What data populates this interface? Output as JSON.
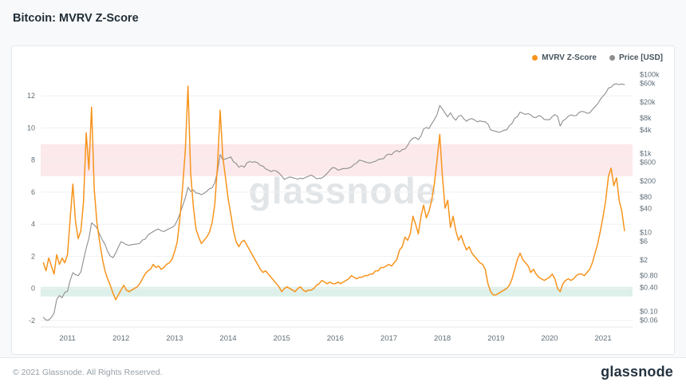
{
  "page": {
    "title": "Bitcoin: MVRV Z-Score",
    "watermark": "glassnode",
    "footer_copyright": "© 2021 Glassnode. All Rights Reserved.",
    "brand": "glassnode"
  },
  "legend": [
    {
      "label": "MVRV Z-Score",
      "color": "#f7941d"
    },
    {
      "label": "Price [USD]",
      "color": "#8e8e8e"
    }
  ],
  "chart_data": {
    "type": "line",
    "title": "Bitcoin: MVRV Z-Score",
    "x_ticks": [
      2011,
      2012,
      2013,
      2014,
      2015,
      2016,
      2017,
      2018,
      2019,
      2020,
      2021
    ],
    "x_range": [
      2010.5,
      2021.55
    ],
    "x_start": 2010.55,
    "x_step": 0.05,
    "left_axis": {
      "label": "MVRV Z-Score",
      "scale": "linear",
      "ticks": [
        -2,
        0,
        2,
        4,
        6,
        8,
        10,
        12
      ],
      "range": [
        -2.4,
        13.6
      ]
    },
    "right_axis": {
      "label": "Price [USD]",
      "scale": "log",
      "tick_labels": [
        "$100k",
        "$60k",
        "$20k",
        "$8k",
        "$4k",
        "$1k",
        "$600",
        "$200",
        "$80",
        "$40",
        "$10",
        "$6",
        "$2",
        "$0.80",
        "$0.40",
        "$0.10",
        "$0.06"
      ],
      "tick_values": [
        100000,
        60000,
        20000,
        8000,
        4000,
        1000,
        600,
        200,
        80,
        40,
        10,
        6,
        2,
        0.8,
        0.4,
        0.1,
        0.06
      ],
      "range": [
        0.04,
        130000
      ]
    },
    "bands": [
      {
        "name": "overvalued-zone",
        "axis": "left",
        "from": 7,
        "to": 9,
        "color": "rgba(231,76,90,0.12)"
      },
      {
        "name": "undervalued-zone",
        "axis": "left",
        "from": -0.5,
        "to": 0.1,
        "color": "rgba(46,164,120,0.16)"
      }
    ],
    "series": [
      {
        "name": "MVRV Z-Score",
        "axis": "left",
        "color": "#f7941d",
        "values": [
          1.6,
          1.1,
          1.9,
          1.4,
          0.9,
          2.1,
          1.5,
          1.9,
          1.6,
          2.1,
          4.3,
          6.5,
          4.2,
          3.1,
          3.6,
          5.4,
          9.7,
          7.4,
          11.3,
          6.2,
          4.1,
          2.9,
          1.9,
          1.1,
          0.6,
          0.2,
          -0.3,
          -0.7,
          -0.4,
          -0.1,
          0.2,
          -0.1,
          -0.2,
          -0.1,
          0.0,
          0.1,
          0.3,
          0.6,
          0.9,
          1.1,
          1.2,
          1.5,
          1.3,
          1.4,
          1.2,
          1.3,
          1.5,
          1.6,
          1.8,
          2.3,
          2.9,
          4.4,
          6.3,
          8.6,
          12.6,
          7.2,
          5.1,
          3.7,
          3.2,
          2.8,
          3.0,
          3.2,
          3.5,
          4.1,
          5.2,
          7.6,
          11.1,
          8.2,
          6.9,
          5.6,
          4.6,
          3.6,
          2.9,
          2.6,
          2.9,
          3.0,
          2.7,
          2.4,
          2.1,
          1.8,
          1.5,
          1.2,
          1.0,
          1.1,
          0.9,
          0.7,
          0.5,
          0.3,
          0.1,
          -0.2,
          0.0,
          0.1,
          0.0,
          -0.1,
          -0.2,
          0.0,
          0.1,
          -0.1,
          -0.2,
          -0.1,
          -0.1,
          0.0,
          0.2,
          0.3,
          0.5,
          0.4,
          0.3,
          0.4,
          0.3,
          0.3,
          0.4,
          0.3,
          0.4,
          0.5,
          0.6,
          0.8,
          0.7,
          0.6,
          0.7,
          0.7,
          0.8,
          0.8,
          0.9,
          0.9,
          1.1,
          1.1,
          1.3,
          1.3,
          1.4,
          1.5,
          1.4,
          1.6,
          1.8,
          2.4,
          2.6,
          3.2,
          3.0,
          3.4,
          4.5,
          4.0,
          3.4,
          4.5,
          5.2,
          4.4,
          4.8,
          5.5,
          6.5,
          8.0,
          9.6,
          7.0,
          5.0,
          5.5,
          3.8,
          4.5,
          3.6,
          3.0,
          3.3,
          2.8,
          2.4,
          2.6,
          2.2,
          2.0,
          1.8,
          1.6,
          1.5,
          1.2,
          0.3,
          -0.2,
          -0.4,
          -0.4,
          -0.3,
          -0.2,
          -0.1,
          0.0,
          0.2,
          0.6,
          1.2,
          1.8,
          2.2,
          1.8,
          1.6,
          1.4,
          1.0,
          1.2,
          0.9,
          0.7,
          0.6,
          0.5,
          0.6,
          0.7,
          0.9,
          0.6,
          0.0,
          -0.2,
          0.3,
          0.5,
          0.6,
          0.5,
          0.6,
          0.8,
          0.9,
          0.9,
          0.8,
          1.0,
          1.2,
          1.6,
          2.2,
          2.8,
          3.6,
          4.5,
          5.5,
          7.0,
          7.5,
          6.4,
          6.9,
          5.5,
          4.8,
          3.6
        ]
      },
      {
        "name": "Price [USD]",
        "axis": "right",
        "color": "#8e8e8e",
        "values": [
          0.07,
          0.06,
          0.06,
          0.07,
          0.09,
          0.2,
          0.25,
          0.22,
          0.3,
          0.32,
          0.6,
          0.95,
          0.85,
          0.8,
          1.0,
          2.0,
          4.0,
          7.0,
          17.5,
          15.5,
          13.0,
          9.0,
          6.5,
          5.0,
          3.3,
          2.5,
          2.3,
          3.0,
          4.3,
          5.8,
          5.4,
          4.9,
          4.7,
          4.9,
          5.0,
          5.1,
          5.3,
          6.4,
          6.7,
          8.5,
          9.5,
          10.5,
          11.5,
          12.2,
          11.0,
          10.5,
          11.5,
          12.5,
          13.3,
          15,
          20,
          30,
          47,
          75,
          140,
          110,
          120,
          100,
          98,
          90,
          98,
          110,
          128,
          135,
          180,
          350,
          950,
          700,
          730,
          770,
          820,
          620,
          560,
          450,
          490,
          450,
          580,
          630,
          600,
          620,
          580,
          500,
          480,
          410,
          380,
          350,
          375,
          360,
          320,
          270,
          220,
          240,
          255,
          245,
          235,
          225,
          237,
          230,
          250,
          265,
          285,
          260,
          230,
          235,
          240,
          270,
          315,
          380,
          440,
          430,
          380,
          395,
          420,
          415,
          430,
          455,
          530,
          575,
          680,
          660,
          620,
          590,
          575,
          610,
          635,
          700,
          730,
          745,
          900,
          970,
          930,
          1100,
          1190,
          1100,
          1250,
          1300,
          1600,
          2100,
          2450,
          2550,
          2250,
          2800,
          4200,
          4600,
          4300,
          5700,
          7200,
          9800,
          16500,
          13500,
          10500,
          8500,
          10800,
          8300,
          7000,
          8900,
          9300,
          7600,
          6600,
          7400,
          7700,
          7100,
          6400,
          6700,
          6500,
          6350,
          5600,
          4000,
          3800,
          3650,
          3450,
          3600,
          3900,
          4000,
          5100,
          5800,
          7900,
          8600,
          11200,
          10500,
          9800,
          10300,
          9500,
          8300,
          8200,
          9200,
          8600,
          7300,
          7200,
          7200,
          8600,
          9700,
          8800,
          5000,
          6800,
          7500,
          8800,
          9600,
          9100,
          9200,
          11000,
          11700,
          11400,
          10500,
          10700,
          13000,
          15500,
          18500,
          23800,
          29000,
          34000,
          46000,
          48000,
          57000,
          58500,
          56000,
          58000,
          56000
        ]
      }
    ]
  }
}
